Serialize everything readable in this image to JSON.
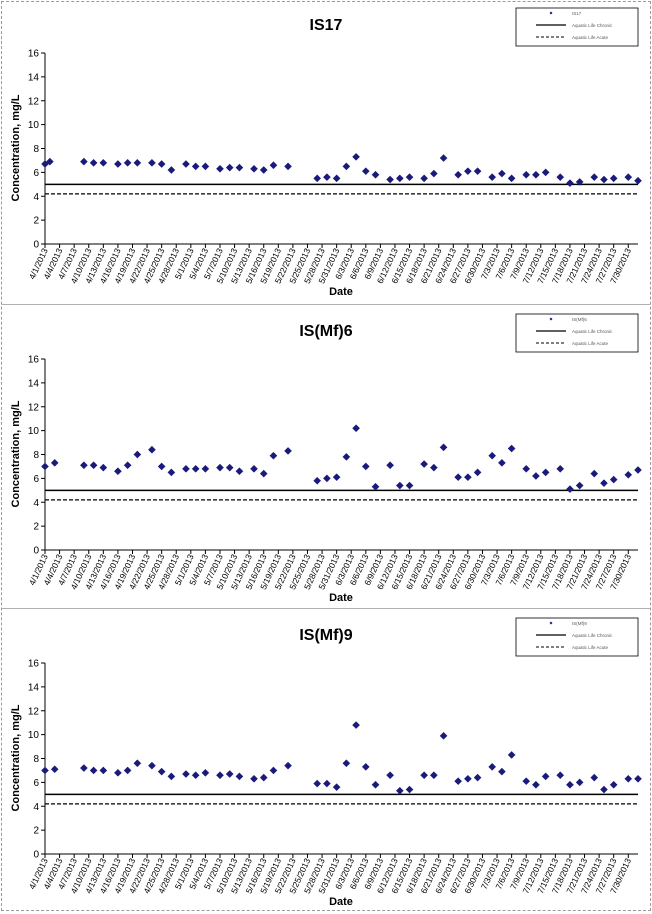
{
  "chart_data": [
    {
      "type": "scatter",
      "title": "IS17",
      "xlabel": "Date",
      "ylabel": "Concentration, mg/L",
      "ylim": [
        0,
        16
      ],
      "yticks": [
        "0",
        "2",
        "4",
        "6",
        "8",
        "10",
        "12",
        "14",
        "16"
      ],
      "xticks": [
        "4/1/2013",
        "4/4/2013",
        "4/7/2013",
        "4/10/2013",
        "4/13/2013",
        "4/16/2013",
        "4/19/2013",
        "4/22/2013",
        "4/25/2013",
        "4/28/2013",
        "5/1/2013",
        "5/4/2013",
        "5/7/2013",
        "5/10/2013",
        "5/13/2013",
        "5/16/2013",
        "5/19/2013",
        "5/22/2013",
        "5/25/2013",
        "5/28/2013",
        "5/31/2013",
        "6/3/2013",
        "6/6/2013",
        "6/9/2013",
        "6/12/2013",
        "6/15/2013",
        "6/18/2013",
        "6/21/2013",
        "6/24/2013",
        "6/27/2013",
        "6/30/2013",
        "7/3/2013",
        "7/6/2013",
        "7/9/2013",
        "7/12/2013",
        "7/15/2013",
        "7/18/2013",
        "7/21/2013",
        "7/24/2013",
        "7/27/2013",
        "7/30/2013"
      ],
      "legend": [
        "IS17",
        "Aquatic Life Chronic",
        "Aquatic Life Acute"
      ],
      "legend_position": "top-right",
      "grid": false,
      "marker_color": "#1a1a7a",
      "points": [
        [
          "4/1/2013",
          6.7
        ],
        [
          "4/2/2013",
          6.9
        ],
        [
          "4/9/2013",
          6.9
        ],
        [
          "4/11/2013",
          6.8
        ],
        [
          "4/13/2013",
          6.8
        ],
        [
          "4/16/2013",
          6.7
        ],
        [
          "4/18/2013",
          6.8
        ],
        [
          "4/20/2013",
          6.8
        ],
        [
          "4/23/2013",
          6.8
        ],
        [
          "4/25/2013",
          6.7
        ],
        [
          "4/27/2013",
          6.2
        ],
        [
          "4/30/2013",
          6.7
        ],
        [
          "5/2/2013",
          6.5
        ],
        [
          "5/4/2013",
          6.5
        ],
        [
          "5/7/2013",
          6.3
        ],
        [
          "5/9/2013",
          6.4
        ],
        [
          "5/11/2013",
          6.4
        ],
        [
          "5/14/2013",
          6.3
        ],
        [
          "5/16/2013",
          6.2
        ],
        [
          "5/18/2013",
          6.6
        ],
        [
          "5/21/2013",
          6.5
        ],
        [
          "5/27/2013",
          5.5
        ],
        [
          "5/29/2013",
          5.6
        ],
        [
          "5/31/2013",
          5.5
        ],
        [
          "6/2/2013",
          6.5
        ],
        [
          "6/4/2013",
          7.3
        ],
        [
          "6/6/2013",
          6.1
        ],
        [
          "6/8/2013",
          5.8
        ],
        [
          "6/11/2013",
          5.4
        ],
        [
          "6/13/2013",
          5.5
        ],
        [
          "6/15/2013",
          5.6
        ],
        [
          "6/18/2013",
          5.5
        ],
        [
          "6/20/2013",
          5.9
        ],
        [
          "6/22/2013",
          7.2
        ],
        [
          "6/25/2013",
          5.8
        ],
        [
          "6/27/2013",
          6.1
        ],
        [
          "6/29/2013",
          6.1
        ],
        [
          "7/2/2013",
          5.6
        ],
        [
          "7/4/2013",
          5.9
        ],
        [
          "7/6/2013",
          5.5
        ],
        [
          "7/9/2013",
          5.8
        ],
        [
          "7/11/2013",
          5.8
        ],
        [
          "7/13/2013",
          6.0
        ],
        [
          "7/16/2013",
          5.6
        ],
        [
          "7/18/2013",
          5.1
        ],
        [
          "7/20/2013",
          5.2
        ],
        [
          "7/23/2013",
          5.6
        ],
        [
          "7/25/2013",
          5.4
        ],
        [
          "7/27/2013",
          5.5
        ],
        [
          "7/30/2013",
          5.6
        ],
        [
          "8/1/2013",
          5.3
        ]
      ],
      "reference_lines": [
        {
          "name": "Aquatic Life Chronic",
          "y": 5.0,
          "style": "solid"
        },
        {
          "name": "Aquatic Life Acute",
          "y": 4.2,
          "style": "dashed"
        }
      ]
    },
    {
      "type": "scatter",
      "title": "IS(Mf)6",
      "xlabel": "Date",
      "ylabel": "Concentration, mg/L",
      "ylim": [
        0,
        16
      ],
      "yticks": [
        "0",
        "2",
        "4",
        "6",
        "8",
        "10",
        "12",
        "14",
        "16"
      ],
      "xticks": [
        "4/1/2013",
        "4/4/2013",
        "4/7/2013",
        "4/10/2013",
        "4/13/2013",
        "4/16/2013",
        "4/19/2013",
        "4/22/2013",
        "4/25/2013",
        "4/28/2013",
        "5/1/2013",
        "5/4/2013",
        "5/7/2013",
        "5/10/2013",
        "5/13/2013",
        "5/16/2013",
        "5/19/2013",
        "5/22/2013",
        "5/25/2013",
        "5/28/2013",
        "5/31/2013",
        "6/3/2013",
        "6/6/2013",
        "6/9/2013",
        "6/12/2013",
        "6/15/2013",
        "6/18/2013",
        "6/21/2013",
        "6/24/2013",
        "6/27/2013",
        "6/30/2013",
        "7/3/2013",
        "7/6/2013",
        "7/9/2013",
        "7/12/2013",
        "7/15/2013",
        "7/18/2013",
        "7/21/2013",
        "7/24/2013",
        "7/27/2013",
        "7/30/2013"
      ],
      "legend": [
        "IS(Mf)6",
        "Aquatic Life Chronic",
        "Aquatic Life Acute"
      ],
      "legend_position": "top-right",
      "grid": false,
      "marker_color": "#1a1a7a",
      "points": [
        [
          "4/1/2013",
          7.0
        ],
        [
          "4/3/2013",
          7.3
        ],
        [
          "4/9/2013",
          7.1
        ],
        [
          "4/11/2013",
          7.1
        ],
        [
          "4/13/2013",
          6.9
        ],
        [
          "4/16/2013",
          6.6
        ],
        [
          "4/18/2013",
          7.1
        ],
        [
          "4/20/2013",
          8.0
        ],
        [
          "4/23/2013",
          8.4
        ],
        [
          "4/25/2013",
          7.0
        ],
        [
          "4/27/2013",
          6.5
        ],
        [
          "4/30/2013",
          6.8
        ],
        [
          "5/2/2013",
          6.8
        ],
        [
          "5/4/2013",
          6.8
        ],
        [
          "5/7/2013",
          6.9
        ],
        [
          "5/9/2013",
          6.9
        ],
        [
          "5/11/2013",
          6.6
        ],
        [
          "5/14/2013",
          6.8
        ],
        [
          "5/16/2013",
          6.4
        ],
        [
          "5/18/2013",
          7.9
        ],
        [
          "5/21/2013",
          8.3
        ],
        [
          "5/27/2013",
          5.8
        ],
        [
          "5/29/2013",
          6.0
        ],
        [
          "5/31/2013",
          6.1
        ],
        [
          "6/2/2013",
          7.8
        ],
        [
          "6/4/2013",
          10.2
        ],
        [
          "6/6/2013",
          7.0
        ],
        [
          "6/8/2013",
          5.3
        ],
        [
          "6/11/2013",
          7.1
        ],
        [
          "6/13/2013",
          5.4
        ],
        [
          "6/15/2013",
          5.4
        ],
        [
          "6/18/2013",
          7.2
        ],
        [
          "6/20/2013",
          6.9
        ],
        [
          "6/22/2013",
          8.6
        ],
        [
          "6/25/2013",
          6.1
        ],
        [
          "6/27/2013",
          6.1
        ],
        [
          "6/29/2013",
          6.5
        ],
        [
          "7/2/2013",
          7.9
        ],
        [
          "7/4/2013",
          7.3
        ],
        [
          "7/6/2013",
          8.5
        ],
        [
          "7/9/2013",
          6.8
        ],
        [
          "7/11/2013",
          6.2
        ],
        [
          "7/13/2013",
          6.5
        ],
        [
          "7/16/2013",
          6.8
        ],
        [
          "7/18/2013",
          5.1
        ],
        [
          "7/20/2013",
          5.4
        ],
        [
          "7/23/2013",
          6.4
        ],
        [
          "7/25/2013",
          5.6
        ],
        [
          "7/27/2013",
          5.9
        ],
        [
          "7/30/2013",
          6.3
        ],
        [
          "8/1/2013",
          6.7
        ]
      ],
      "reference_lines": [
        {
          "name": "Aquatic Life Chronic",
          "y": 5.0,
          "style": "solid"
        },
        {
          "name": "Aquatic Life Acute",
          "y": 4.2,
          "style": "dashed"
        }
      ]
    },
    {
      "type": "scatter",
      "title": "IS(Mf)9",
      "xlabel": "Date",
      "ylabel": "Concentration, mg/L",
      "ylim": [
        0,
        16
      ],
      "yticks": [
        "0",
        "2",
        "4",
        "6",
        "8",
        "10",
        "12",
        "14",
        "16"
      ],
      "xticks": [
        "4/1/2013",
        "4/4/2013",
        "4/7/2013",
        "4/10/2013",
        "4/13/2013",
        "4/16/2013",
        "4/19/2013",
        "4/22/2013",
        "4/25/2013",
        "4/28/2013",
        "5/1/2013",
        "5/4/2013",
        "5/7/2013",
        "5/10/2013",
        "5/13/2013",
        "5/16/2013",
        "5/19/2013",
        "5/22/2013",
        "5/25/2013",
        "5/28/2013",
        "5/31/2013",
        "6/3/2013",
        "6/6/2013",
        "6/9/2013",
        "6/12/2013",
        "6/15/2013",
        "6/18/2013",
        "6/21/2013",
        "6/24/2013",
        "6/27/2013",
        "6/30/2013",
        "7/3/2013",
        "7/6/2013",
        "7/9/2013",
        "7/12/2013",
        "7/15/2013",
        "7/18/2013",
        "7/21/2013",
        "7/24/2013",
        "7/27/2013",
        "7/30/2013"
      ],
      "legend": [
        "IS(Mf)9",
        "Aquatic Life Chronic",
        "Aquatic Life Acute"
      ],
      "legend_position": "top-right",
      "grid": false,
      "marker_color": "#1a1a7a",
      "points": [
        [
          "4/1/2013",
          7.0
        ],
        [
          "4/3/2013",
          7.1
        ],
        [
          "4/9/2013",
          7.2
        ],
        [
          "4/11/2013",
          7.0
        ],
        [
          "4/13/2013",
          7.0
        ],
        [
          "4/16/2013",
          6.8
        ],
        [
          "4/18/2013",
          7.0
        ],
        [
          "4/20/2013",
          7.6
        ],
        [
          "4/23/2013",
          7.4
        ],
        [
          "4/25/2013",
          6.9
        ],
        [
          "4/27/2013",
          6.5
        ],
        [
          "4/30/2013",
          6.7
        ],
        [
          "5/2/2013",
          6.6
        ],
        [
          "5/4/2013",
          6.8
        ],
        [
          "5/7/2013",
          6.6
        ],
        [
          "5/9/2013",
          6.7
        ],
        [
          "5/11/2013",
          6.5
        ],
        [
          "5/14/2013",
          6.3
        ],
        [
          "5/16/2013",
          6.4
        ],
        [
          "5/18/2013",
          7.0
        ],
        [
          "5/21/2013",
          7.4
        ],
        [
          "5/27/2013",
          5.9
        ],
        [
          "5/29/2013",
          5.9
        ],
        [
          "5/31/2013",
          5.6
        ],
        [
          "6/2/2013",
          7.6
        ],
        [
          "6/4/2013",
          10.8
        ],
        [
          "6/6/2013",
          7.3
        ],
        [
          "6/8/2013",
          5.8
        ],
        [
          "6/11/2013",
          6.6
        ],
        [
          "6/13/2013",
          5.3
        ],
        [
          "6/15/2013",
          5.4
        ],
        [
          "6/18/2013",
          6.6
        ],
        [
          "6/20/2013",
          6.6
        ],
        [
          "6/22/2013",
          9.9
        ],
        [
          "6/25/2013",
          6.1
        ],
        [
          "6/27/2013",
          6.3
        ],
        [
          "6/29/2013",
          6.4
        ],
        [
          "7/2/2013",
          7.3
        ],
        [
          "7/4/2013",
          6.9
        ],
        [
          "7/6/2013",
          8.3
        ],
        [
          "7/9/2013",
          6.1
        ],
        [
          "7/11/2013",
          5.8
        ],
        [
          "7/13/2013",
          6.5
        ],
        [
          "7/16/2013",
          6.6
        ],
        [
          "7/18/2013",
          5.8
        ],
        [
          "7/20/2013",
          6.0
        ],
        [
          "7/23/2013",
          6.4
        ],
        [
          "7/25/2013",
          5.4
        ],
        [
          "7/27/2013",
          5.8
        ],
        [
          "7/30/2013",
          6.3
        ],
        [
          "8/1/2013",
          6.3
        ]
      ],
      "reference_lines": [
        {
          "name": "Aquatic Life Chronic",
          "y": 5.0,
          "style": "solid"
        },
        {
          "name": "Aquatic Life Acute",
          "y": 4.2,
          "style": "dashed"
        }
      ]
    }
  ]
}
